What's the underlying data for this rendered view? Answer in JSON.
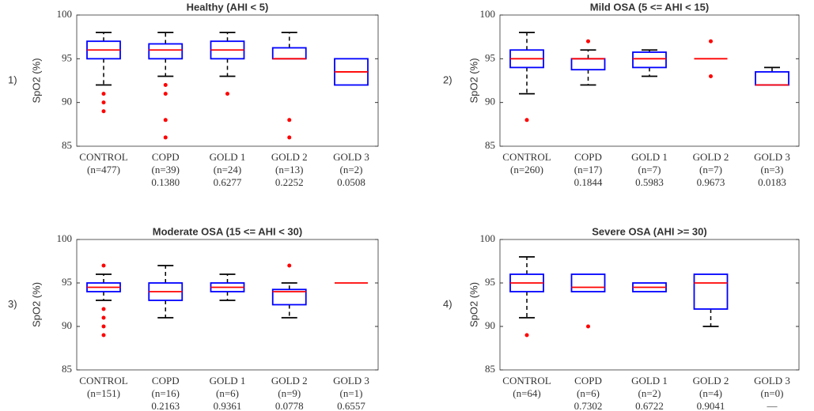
{
  "chart_data": [
    {
      "type": "box",
      "panel_label": "1)",
      "title": "Healthy (AHI < 5)",
      "ylabel": "SpO2 (%)",
      "ylim": [
        85,
        100
      ],
      "yticks": [
        85,
        90,
        95,
        100
      ],
      "categories": [
        "CONTROL",
        "COPD",
        "GOLD 1",
        "GOLD 2",
        "GOLD 3"
      ],
      "n_labels": [
        "(n=477)",
        "(n=39)",
        "(n=24)",
        "(n=13)",
        "(n=2)"
      ],
      "p_values": [
        null,
        "0.1380",
        "0.6277",
        "0.2252",
        "0.0508"
      ],
      "boxes": [
        {
          "whislo": 92,
          "q1": 95,
          "med": 96,
          "q3": 97,
          "whishi": 98,
          "fliers": [
            91,
            90,
            89
          ]
        },
        {
          "whislo": 93,
          "q1": 95,
          "med": 96,
          "q3": 96.7,
          "whishi": 98,
          "fliers": [
            92,
            91,
            88,
            86
          ]
        },
        {
          "whislo": 93,
          "q1": 95,
          "med": 96,
          "q3": 97,
          "whishi": 98,
          "fliers": [
            91
          ]
        },
        {
          "whislo": 95,
          "q1": 95,
          "med": 95,
          "q3": 96.25,
          "whishi": 98,
          "fliers": [
            88,
            86
          ]
        },
        {
          "whislo": 92,
          "q1": 92,
          "med": 93.5,
          "q3": 95,
          "whishi": 95,
          "fliers": []
        }
      ]
    },
    {
      "type": "box",
      "panel_label": "2)",
      "title": "Mild OSA (5 <= AHI < 15)",
      "ylabel": "SpO2 (%)",
      "ylim": [
        85,
        100
      ],
      "yticks": [
        85,
        90,
        95,
        100
      ],
      "categories": [
        "CONTROL",
        "COPD",
        "GOLD 1",
        "GOLD 2",
        "GOLD 3"
      ],
      "n_labels": [
        "(n=260)",
        "(n=17)",
        "(n=7)",
        "(n=7)",
        "(n=3)"
      ],
      "p_values": [
        null,
        "0.1844",
        "0.5983",
        "0.9673",
        "0.0183"
      ],
      "boxes": [
        {
          "whislo": 91,
          "q1": 94,
          "med": 95,
          "q3": 96,
          "whishi": 98,
          "fliers": [
            88
          ]
        },
        {
          "whislo": 92,
          "q1": 93.75,
          "med": 95,
          "q3": 95,
          "whishi": 96,
          "fliers": [
            97
          ]
        },
        {
          "whislo": 93,
          "q1": 94,
          "med": 95,
          "q3": 95.75,
          "whishi": 96,
          "fliers": []
        },
        {
          "whislo": 95,
          "q1": 95,
          "med": 95,
          "q3": 95,
          "whishi": 95,
          "fliers": [
            97,
            93
          ]
        },
        {
          "whislo": 92,
          "q1": 92,
          "med": 92,
          "q3": 93.5,
          "whishi": 94,
          "fliers": []
        }
      ]
    },
    {
      "type": "box",
      "panel_label": "3)",
      "title": "Moderate OSA (15 <= AHI < 30)",
      "ylabel": "SpO2 (%)",
      "ylim": [
        85,
        100
      ],
      "yticks": [
        85,
        90,
        95,
        100
      ],
      "categories": [
        "CONTROL",
        "COPD",
        "GOLD 1",
        "GOLD 2",
        "GOLD 3"
      ],
      "n_labels": [
        "(n=151)",
        "(n=16)",
        "(n=6)",
        "(n=9)",
        "(n=1)"
      ],
      "p_values": [
        null,
        "0.2163",
        "0.9361",
        "0.0778",
        "0.6557"
      ],
      "boxes": [
        {
          "whislo": 93,
          "q1": 94,
          "med": 94.5,
          "q3": 95,
          "whishi": 96,
          "fliers": [
            97,
            92,
            91,
            90,
            89
          ]
        },
        {
          "whislo": 91,
          "q1": 93,
          "med": 94,
          "q3": 95,
          "whishi": 97,
          "fliers": []
        },
        {
          "whislo": 93,
          "q1": 94,
          "med": 94.5,
          "q3": 95,
          "whishi": 96,
          "fliers": []
        },
        {
          "whislo": 91,
          "q1": 92.5,
          "med": 94,
          "q3": 94.25,
          "whishi": 95,
          "fliers": [
            97
          ]
        },
        {
          "whislo": 95,
          "q1": 95,
          "med": 95,
          "q3": 95,
          "whishi": 95,
          "fliers": []
        }
      ]
    },
    {
      "type": "box",
      "panel_label": "4)",
      "title": "Severe OSA (AHI >= 30)",
      "ylabel": "SpO2 (%)",
      "ylim": [
        85,
        100
      ],
      "yticks": [
        85,
        90,
        95,
        100
      ],
      "categories": [
        "CONTROL",
        "COPD",
        "GOLD 1",
        "GOLD 2",
        "GOLD 3"
      ],
      "n_labels": [
        "(n=64)",
        "(n=6)",
        "(n=2)",
        "(n=4)",
        "(n=0)"
      ],
      "p_values": [
        null,
        "0.7302",
        "0.6722",
        "0.9041",
        "—"
      ],
      "boxes": [
        {
          "whislo": 91,
          "q1": 94,
          "med": 95,
          "q3": 96,
          "whishi": 98,
          "fliers": [
            89
          ]
        },
        {
          "whislo": 94,
          "q1": 94,
          "med": 94.5,
          "q3": 96,
          "whishi": 96,
          "fliers": [
            90
          ]
        },
        {
          "whislo": 94,
          "q1": 94,
          "med": 94.5,
          "q3": 95,
          "whishi": 95,
          "fliers": []
        },
        {
          "whislo": 90,
          "q1": 92,
          "med": 95,
          "q3": 96,
          "whishi": 96,
          "fliers": []
        },
        null
      ]
    }
  ]
}
